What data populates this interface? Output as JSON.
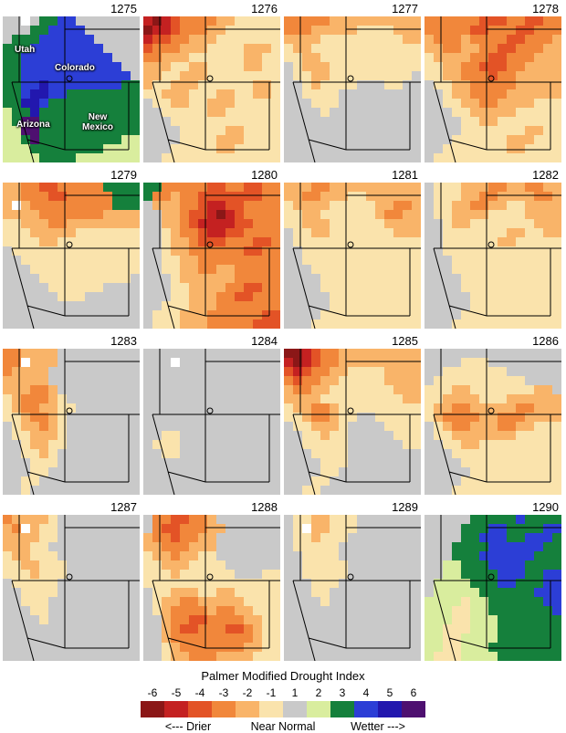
{
  "state_labels": {
    "utah": "Utah",
    "colorado": "Colorado",
    "arizona": "Arizona",
    "new_mexico": "New Mexico"
  },
  "legend": {
    "title": "Palmer Modified Drought Index",
    "ticks": [
      "-6",
      "-5",
      "-4",
      "-3",
      "-2",
      "-1",
      "1",
      "2",
      "3",
      "4",
      "5",
      "6"
    ],
    "codes": [
      "K",
      "R",
      "r",
      "O",
      "o",
      "c",
      "g",
      "p",
      "G",
      "b",
      "B",
      "P"
    ],
    "drier": "<--- Drier",
    "near_normal": "Near Normal",
    "wetter": "Wetter --->"
  },
  "palette": {
    "K": "#8B1717",
    "R": "#C42121",
    "r": "#E35326",
    "O": "#F1873B",
    "o": "#F9B469",
    "c": "#FAE3AC",
    "g": "#C9C9C9",
    "p": "#D9ED9E",
    "G": "#15803C",
    "b": "#2C3ED6",
    "B": "#2217AE",
    "P": "#4E1070",
    "w": "#FFFFFF"
  },
  "panels": [
    {
      "year": "1275",
      "grid": [
        "ggwgGGbbggggggg",
        "gggGGbbbbgggggg",
        "gGGGbbbbbbggggg",
        "GGGbbbbbbbbgggg",
        "GGbbbbbbbbbbggg",
        "GGbbbbbbbbbbbgg",
        "GGbbbbbbbbbbbbg",
        "GGbbBbbbbbbbbGG",
        "GGbBBbbGGGGGGGG",
        "GGBBbGGGGGGGGGG",
        "pGGBGGGGGGGGGGG",
        "pGPPGGGGGGGGGGG",
        "ppPPGGGGGGGGGGG",
        "ppGPGGGGGGGGGpp",
        "pppGGGGGGGGpppp",
        "ppppGGGGppppppp"
      ]
    },
    {
      "year": "1276",
      "grid": [
        "RKRrOOOOooccccc",
        "KRRrOOOoocccccc",
        "RrrOOoooccccccc",
        "rOOOoooccccoooc",
        "OOoooccccccoocc",
        "oooccooccccoocc",
        "ooccooocccccccc",
        "occoooccccccooc",
        "ccooocccooccooc",
        "gccooccoooccccc",
        "ggcccccoocccccc",
        "gggcccccccccccc",
        "ggggcccccoocccc",
        "ggggccccooocccc",
        "gggcccccooccccc",
        "ggccccccccccccc"
      ]
    },
    {
      "year": "1277",
      "grid": [
        "OOOOOoooooooooo",
        "OOOoooooccccooo",
        "oooocccccccccoo",
        "coocccccccccccc",
        "ccooccccccccccc",
        "gcooocccccccccc",
        "gccoocccccccccg",
        "ggcoccccgggccgg",
        "ggccccggggggggg",
        "gggcccggggggggg",
        "ggggcgggggggggg",
        "ggggggggggggggg",
        "ggggggggggggggg",
        "ggggggggggggggg",
        "ggggggggggggggg",
        "ggggggggggggggg"
      ]
    },
    {
      "year": "1278",
      "grid": [
        "OOOOOOrrrOOrrOO",
        "OOOOOrrOOOrrOOO",
        "oOOOoOOOOrrOOOo",
        "ooOOooOOrrOOOoo",
        "cooooOOrrOOOooo",
        "ccooOOrrrOOoooo",
        "ccooOOOrOOooooo",
        "gccooOOOOOooooo",
        "ggcooOOOOoooooo",
        "ggccooOOooooccc",
        "gggccoooooccccc",
        "ggggccooccccccc",
        "ggggcccccccoocc",
        "gggccccccoooccc",
        "ggcccccccoocccc",
        "gcccccccccccccc"
      ]
    },
    {
      "year": "1279",
      "grid": [
        "ooOOrrOOOOOGGGG",
        "ooOOOrrOOOOOGGG",
        "owoOOOOOOOOOGGG",
        "ooooOOOOOOOoooo",
        "ccoooOOoooooooo",
        "cccoooooccccccc",
        "ccccooccccccccc",
        "gcccccccccccccc",
        "ggccccccccccccc",
        "gggcccccccccccc",
        "ggggccccccccccg",
        "gggggccccccgggg",
        "ggggggcccgggggg",
        "ggggggggggggggg",
        "ggggggggggggggg",
        "ggggggggggggggg"
      ]
    },
    {
      "year": "1280",
      "grid": [
        "GGOOOOOrrOOrrOO",
        "GOOoOOrrrrrrrOO",
        "goooOOrRRrrOOOO",
        "ggooOrrRKRrOOOO",
        "ggooOrRRRRrrOOO",
        "ggcoOOrRRrrOOOO",
        "ggcooOrrrOOOrrO",
        "ggcooOOOOOOrrOO",
        "ggccooOOOOOOOOO",
        "ggccooOOooOOOOO",
        "gggcooooooOOOOO",
        "gggccooooOOrrOO",
        "gggccoooOOrrOOO",
        "ggcccoooOOOOOOO",
        "gcccoooOOOOOOrr",
        "gcccoooOOOOOrrr"
      ]
    },
    {
      "year": "1281",
      "grid": [
        "oooOOoooooooooo",
        "ooOOoooccoooooo",
        "coooocccccooOOo",
        "ccooccccccoOOoo",
        "ccoooccccccoooo",
        "gccoocccccccooo",
        "gcccccccccccccc",
        "ggccccccccccccc",
        "ggccccccccccccc",
        "gggcccccccccccc",
        "ggggccccccccccc",
        "ggggccccccccccc",
        "gggggcccccccccc",
        "gggggcccccccccc",
        "ggggccccccccccc",
        "gggcccccccccccc"
      ]
    },
    {
      "year": "1282",
      "grid": [
        "gcccoooOOooOOoo",
        "gcccooOOooooOOo",
        "gccooOOooccoooo",
        "gccooooccccoooo",
        "ggcoocccccccooo",
        "ggcccccccooccoo",
        "ggccccccooccccc",
        "ggccccccccccccc",
        "gggcccccccccccc",
        "gggcccccccccccc",
        "ggggccccccccccc",
        "ggggccccccccccc",
        "gggggcccccccccc",
        "gggggcccccccccc",
        "ggggccccccccccc",
        "gggcccccccccccc"
      ]
    },
    {
      "year": "1283",
      "grid": [
        "OOooooggggggggg",
        "OOwoooggggggggg",
        "Ooooogggggggggg",
        "ooooogggggggggg",
        "oooOOoggggggggg",
        "coOOOocgggggggg",
        "coOOooccggggggg",
        "ccoOOocgggggggg",
        "gcooOocgggggggg",
        "gccooocgggggggg",
        "ggcooccgggggggg",
        "ggccocggggggggg",
        "gggcccggggggggg",
        "gggccgggggggggg",
        "ggccggggggggggg",
        "ggcgggggggggggg"
      ]
    },
    {
      "year": "1284",
      "grid": [
        "ggggggggggggggg",
        "gggwggggggggggg",
        "ggggggggggggggg",
        "ggggggggggggggg",
        "ggggggggggggggg",
        "ggggggggggggggg",
        "ggggggggggggggg",
        "ggggggggggggggg",
        "ggggggggggggggg",
        "ggccggggggggggg",
        "gcccggggggggggg",
        "ggccggggggggggg",
        "ggggggggggggggg",
        "ggggggggggggggg",
        "ggggggggggggggg",
        "ggggggggggggggg"
      ]
    },
    {
      "year": "1285",
      "grid": [
        "KKRrOOooooooooo",
        "RKRrOOooooooooo",
        "rRrOOooccccoooo",
        "OrOOoocccccoooo",
        "oOOoocccccccooo",
        "oooocccccccccoo",
        "cooOOoccccccccc",
        "ccoOOoccggccccc",
        "gccooocggggcccc",
        "ggccoccgggggccc",
        "ggcccccggggggcc",
        "gggccccgggggggg",
        "ggggcccgggggggg",
        "ggggccggggggggg",
        "gggccgggggggggg",
        "ggccggggggggggg"
      ]
    },
    {
      "year": "1286",
      "grid": [
        "ggggggggggggggg",
        "ggggcccgggggggg",
        "ggcccccccgggggg",
        "gccccccccccgggg",
        "cccoocccccccoog",
        "ccoooocccoooooo",
        "cooOOoooooOOooo",
        "coOOOOooOOOoooo",
        "gcoOOoooOOooccc",
        "gccoooooooccccc",
        "ggccooccccccccc",
        "gggcccccccccccc",
        "ggggccccccccccc",
        "gggggcccccccccc",
        "ggggccccccccccc",
        "gggcccccccccccc"
      ]
    },
    {
      "year": "1287",
      "grid": [
        "Ooooocggggggggg",
        "oOwoccggggggggg",
        "ooooccggggggggg",
        "oooccgggggggggg",
        "coocccggggggggg",
        "ccoocccgggggggg",
        "cccocccgggggggg",
        "gcccccggggggggg",
        "ggccccggggggggg",
        "ggcccgggggggggg",
        "gggccgggggggggg",
        "ggggcgggggggggg",
        "ggggggggggggggg",
        "ggggggggggggggg",
        "ggggggggggggggg",
        "ggggggggggggggg"
      ]
    },
    {
      "year": "1288",
      "grid": [
        "gOOrrOOoggggggg",
        "gOrrOOOoogggggg",
        "oOOrOOooggggggg",
        "ooOOOoooggggggg",
        "cooOooccggggggg",
        "ccoooccccgggggg",
        "cccoccccccgggcc",
        "ccccccccccccccc",
        "gccoooccooccccc",
        "gcooOOooooocccc",
        "gcoOOOOoOOooccc",
        "ggoOOrrOOOOoocc",
        "ggoOrrOOOrrOocc",
        "ggoOOOOOOOOOocc",
        "ggcoOOOOOOOoocc",
        "ggcooOOOooooccc"
      ]
    },
    {
      "year": "1289",
      "grid": [
        "gccoocccggggggg",
        "gcwoocccggggggg",
        "gccocccgggggggg",
        "gcccccggggggggg",
        "ggccccggggggggg",
        "ggcccccgggggggg",
        "ggcccccgggggggg",
        "gggcccggggggggg",
        "gggccgggggggggg",
        "ggggcgggggggggg",
        "ggggggggggggggg",
        "ggggggggggggggg",
        "ggggggggggggggg",
        "ggggggggggggggg",
        "ggggggggggggggg",
        "ggggggggggggggg"
      ]
    },
    {
      "year": "1290",
      "grid": [
        "gggggGGGGGbGGGG",
        "ggggGGGbbGGGGbb",
        "ggggGGbbbGGbbbG",
        "gggGGGGbbbbbbGG",
        "gggGGGbbbbbbGGG",
        "ggppGGGbbbbGGGG",
        "ggppGGGGbbbGGbb",
        "gppppGGGbbGGGbb",
        "gpppppGGGGGGbbb",
        "ppppcppGGGGGGbb",
        "pppccppGGGGGGGb",
        "pppccpppGGGGGGG",
        "ppcccpppGGGGGGG",
        "ppccppppGGGGGGG",
        "ppccpppGGGGGGGG",
        "pcccppppGGGGGGG"
      ]
    }
  ]
}
